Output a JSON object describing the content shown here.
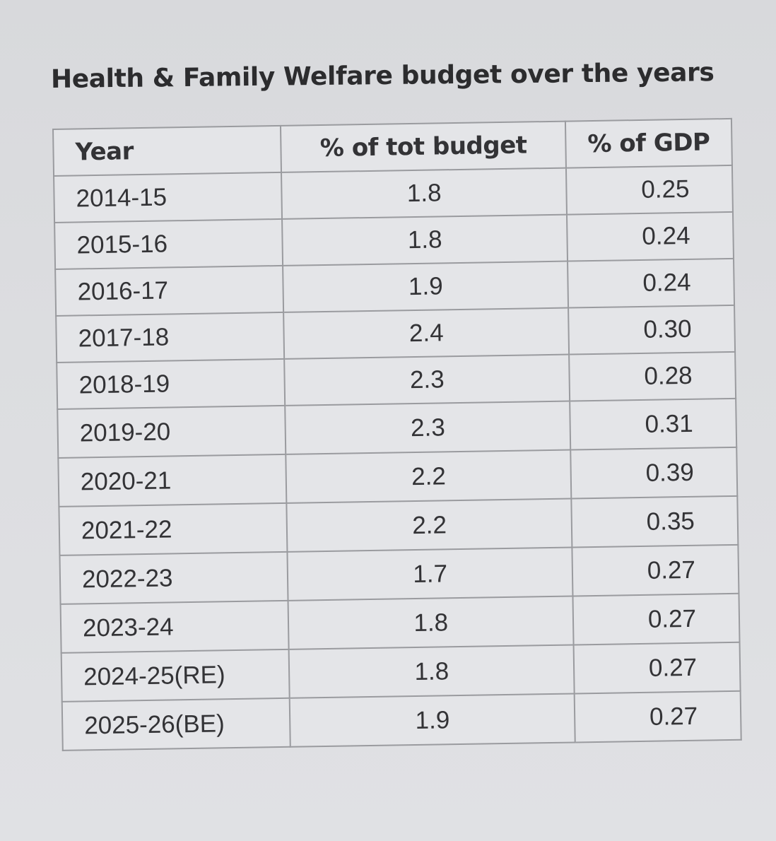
{
  "title": "Health & Family Welfare budget over the years",
  "table": {
    "headers": [
      "Year",
      "% of tot budget",
      "% of GDP"
    ],
    "rows": [
      [
        "2014-15",
        "1.8",
        "0.25"
      ],
      [
        "2015-16",
        "1.8",
        "0.24"
      ],
      [
        "2016-17",
        "1.9",
        "0.24"
      ],
      [
        "2017-18",
        "2.4",
        "0.30"
      ],
      [
        "2018-19",
        "2.3",
        "0.28"
      ],
      [
        "2019-20",
        "2.3",
        "0.31"
      ],
      [
        "2020-21",
        "2.2",
        "0.39"
      ],
      [
        "2021-22",
        "2.2",
        "0.35"
      ],
      [
        "2022-23",
        "1.7",
        "0.27"
      ],
      [
        "2023-24",
        "1.8",
        "0.27"
      ],
      [
        "2024-25(RE)",
        "1.8",
        "0.27"
      ],
      [
        "2025-26(BE)",
        "1.9",
        "0.27"
      ]
    ]
  }
}
